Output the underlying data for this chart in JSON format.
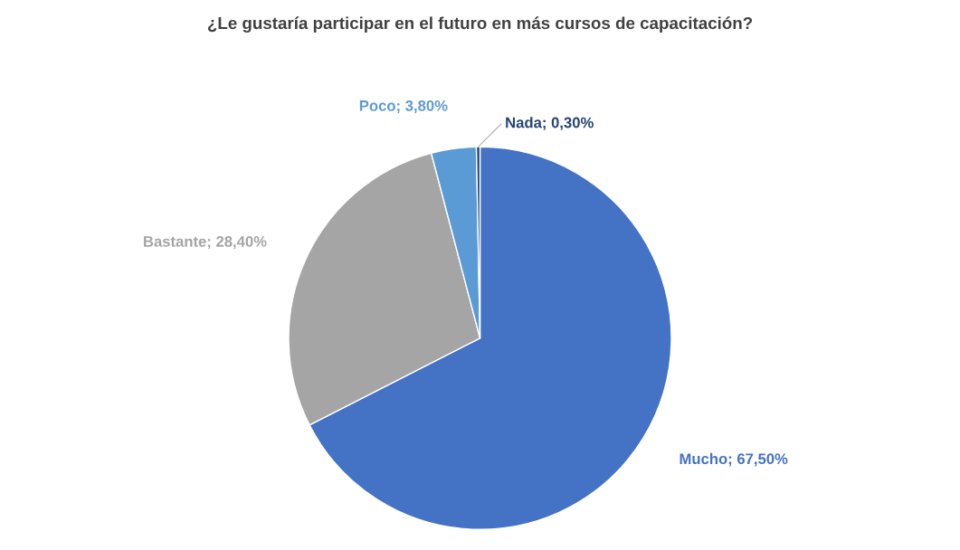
{
  "chart_data": {
    "type": "pie",
    "title": "¿Le gustaría participar en el futuro en más cursos de capacitación?",
    "categories": [
      "Mucho",
      "Bastante",
      "Poco",
      "Nada"
    ],
    "values": [
      67.5,
      28.4,
      3.8,
      0.3
    ],
    "value_labels": [
      "67,50%",
      "28,40%",
      "3,80%",
      "0,30%"
    ],
    "colors": [
      "#4472c4",
      "#a5a5a5",
      "#5b9bd5",
      "#264478"
    ]
  }
}
